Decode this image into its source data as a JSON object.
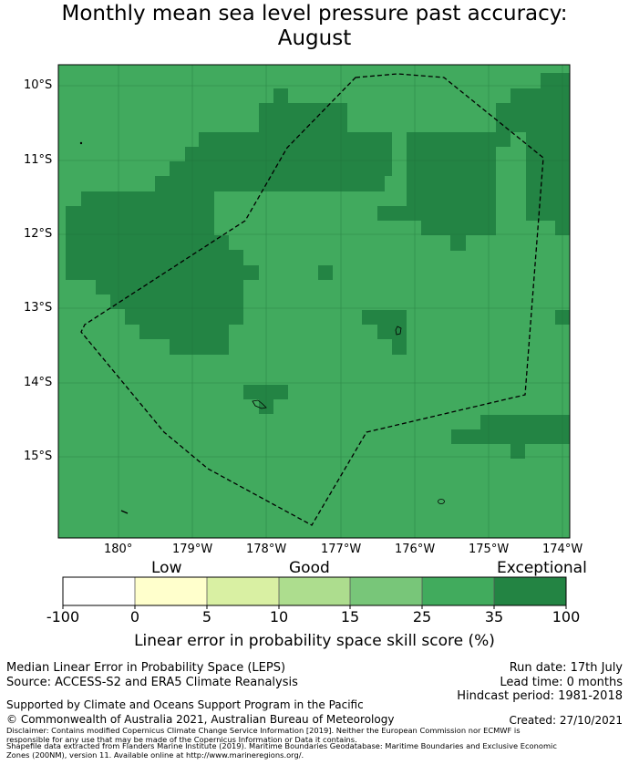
{
  "title": {
    "line1": "Monthly mean sea level pressure past accuracy:",
    "line2": "August"
  },
  "map": {
    "lat_labels": [
      "10°S",
      "11°S",
      "12°S",
      "13°S",
      "14°S",
      "15°S"
    ],
    "lon_labels": [
      "180°",
      "179°W",
      "178°W",
      "177°W",
      "176°W",
      "175°W",
      "174°W"
    ],
    "colors": {
      "mid_green": "#41aa5e",
      "dark_green": "#238444",
      "border": "#000000"
    }
  },
  "colorbar": {
    "categories": [
      "Low",
      "Good",
      "Exceptional"
    ],
    "ticks": [
      "-100",
      "0",
      "5",
      "10",
      "15",
      "25",
      "35",
      "100"
    ],
    "colors": [
      "#ffffff",
      "#ffffcc",
      "#d9f0a3",
      "#addd8e",
      "#78c679",
      "#41ab5d",
      "#238443"
    ],
    "label": "Linear error in probability space skill score (%)"
  },
  "footer": {
    "left1": "Median Linear Error in Probability Space (LEPS)",
    "left2": "Source: ACCESS-S2 and ERA5 Climate Reanalysis",
    "run_date": "Run date: 17th July",
    "lead_time": "Lead time: 0 months",
    "hindcast": "Hindcast period: 1981-2018",
    "support": "Supported by Climate and Oceans Support Program in the Pacific",
    "copyright": "© Commonwealth of Australia 2021, Australian Bureau of Meteorology",
    "created": "Created: 27/10/2021",
    "disclaimer1": "Disclaimer: Contains modified Copernicus Climate Change Service Information [2019]. Neither the European Commission nor ECMWF is",
    "disclaimer2": "responsible for any use that may be made of the Copernicus Information or Data it contains.",
    "disclaimer3": "Shapefile data extracted from Flanders Marine Institute (2019). Maritime Boundaries Geodatabase: Maritime Boundaries and Exclusive Economic",
    "disclaimer4": "Zones (200NM), version 11. Available online at http://www.marineregions.org/."
  }
}
